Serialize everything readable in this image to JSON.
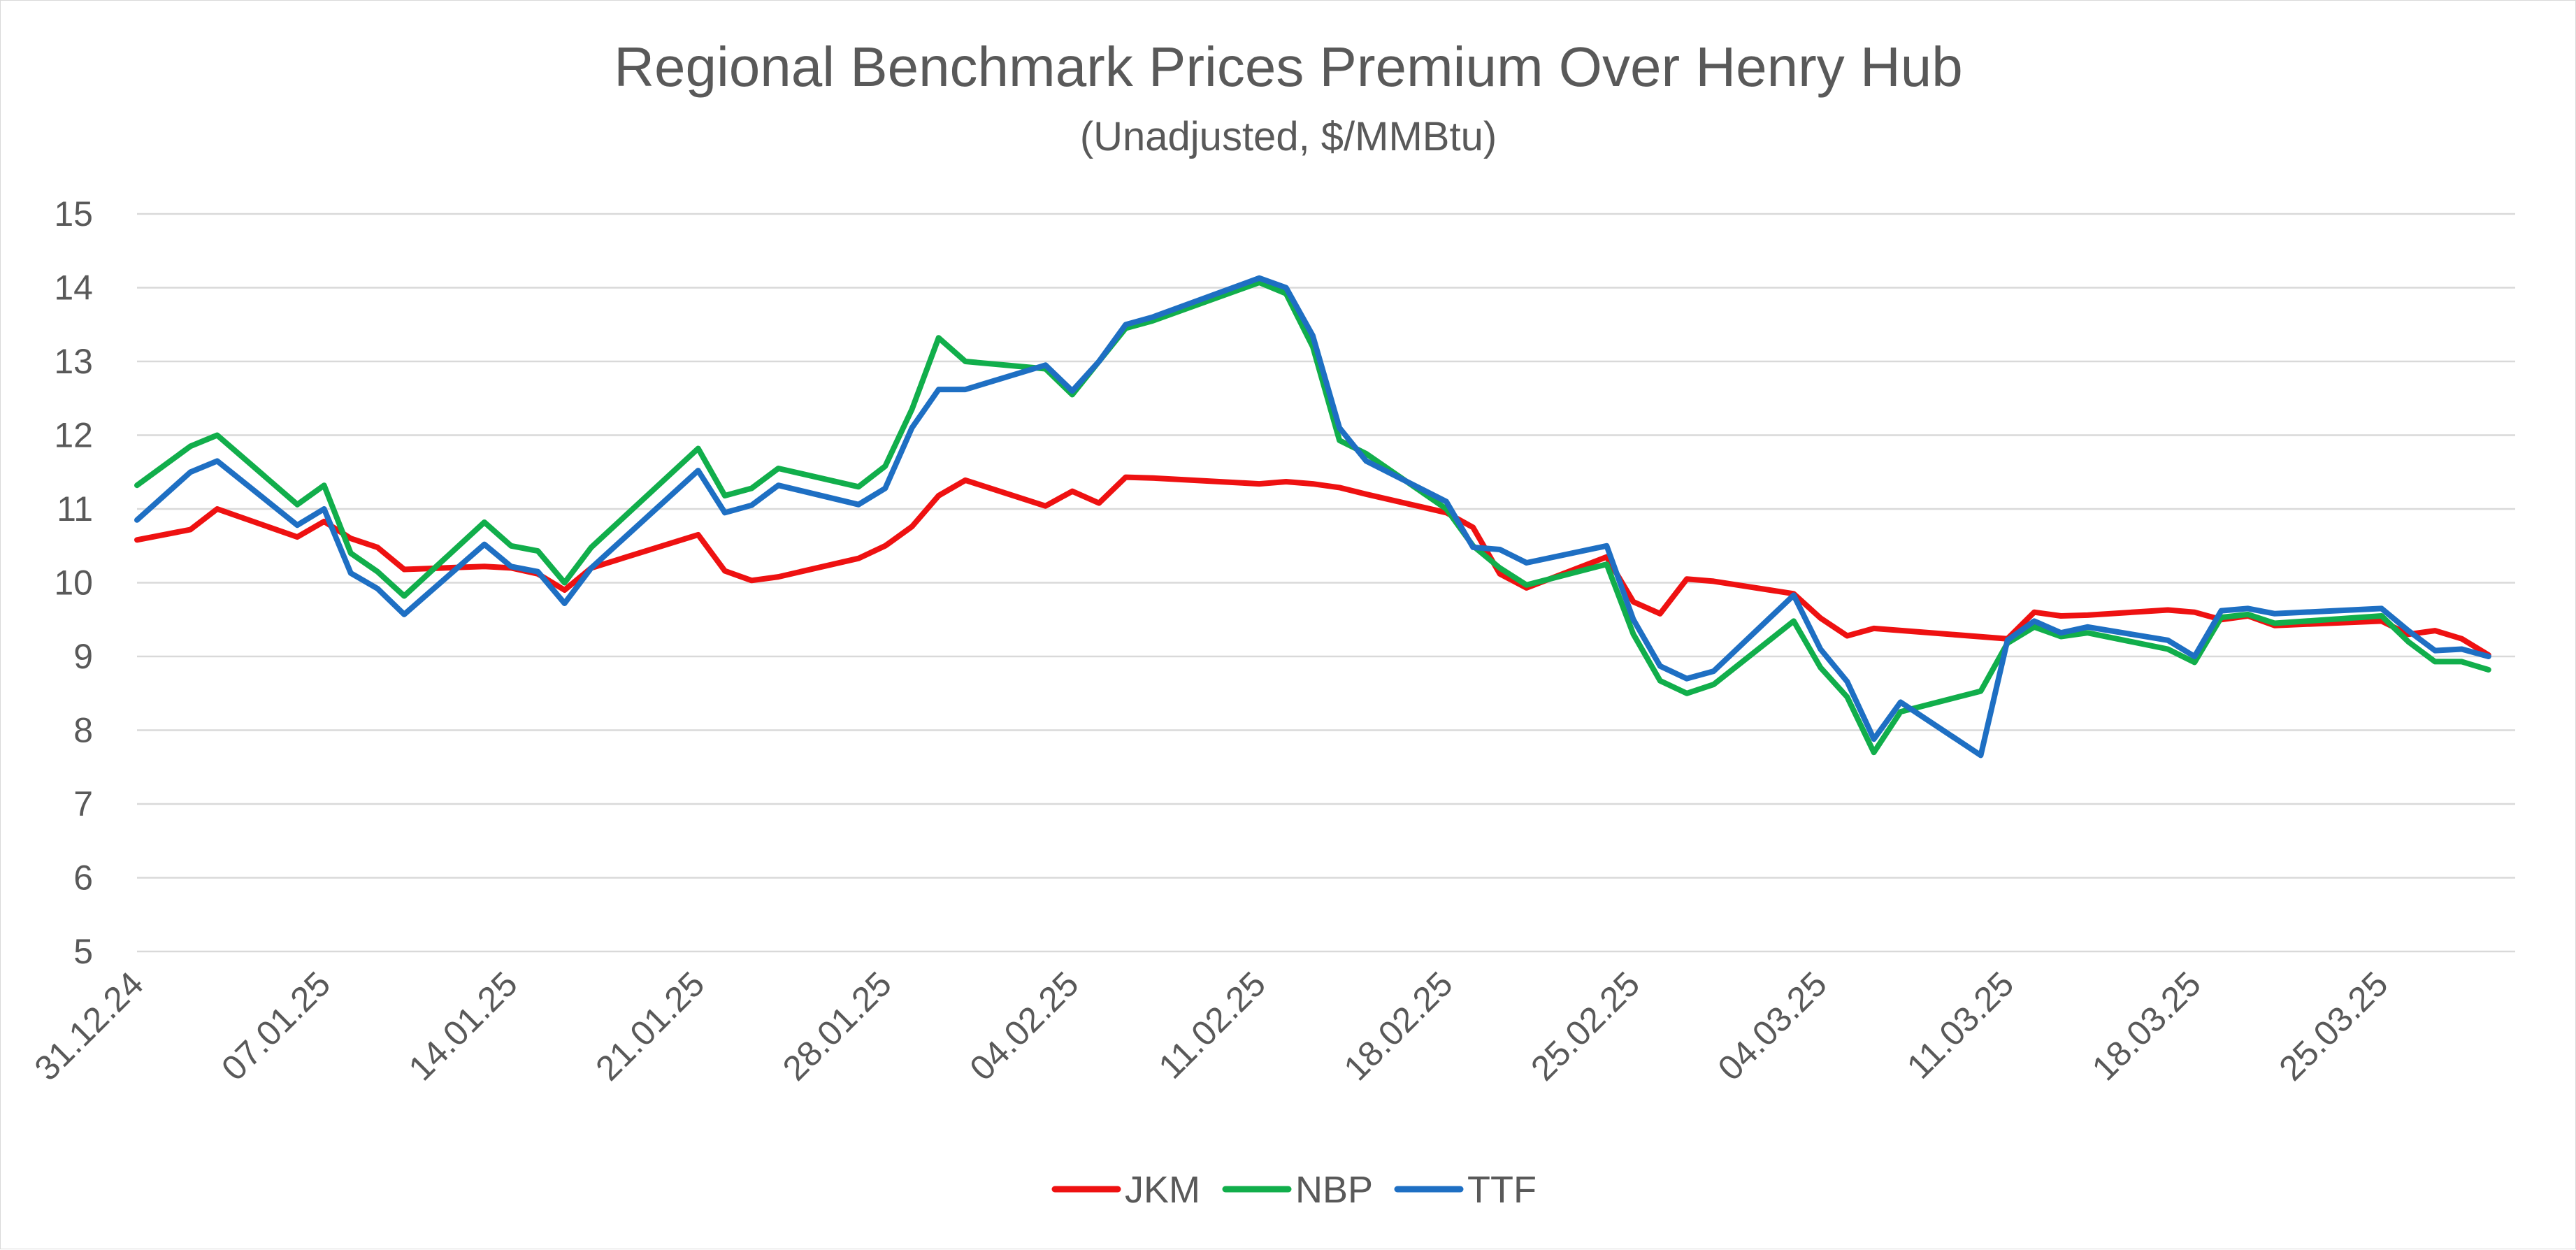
{
  "chart_data": {
    "type": "line",
    "title": "Regional Benchmark Prices Premium Over Henry Hub",
    "subtitle": "(Unadjusted, $/MMBtu)",
    "xlabel": "",
    "ylabel": "",
    "ylim": [
      5,
      15
    ],
    "yticks": [
      "5",
      "6",
      "7",
      "8",
      "9",
      "10",
      "11",
      "12",
      "13",
      "14",
      "15"
    ],
    "xlim": [
      0,
      89
    ],
    "xtick_labels": [
      {
        "day": 0,
        "label": "31.12.24"
      },
      {
        "day": 7,
        "label": "07.01.25"
      },
      {
        "day": 14,
        "label": "14.01.25"
      },
      {
        "day": 21,
        "label": "21.01.25"
      },
      {
        "day": 28,
        "label": "28.01.25"
      },
      {
        "day": 35,
        "label": "04.02.25"
      },
      {
        "day": 42,
        "label": "11.02.25"
      },
      {
        "day": 49,
        "label": "18.02.25"
      },
      {
        "day": 56,
        "label": "25.02.25"
      },
      {
        "day": 63,
        "label": "04.03.25"
      },
      {
        "day": 70,
        "label": "11.03.25"
      },
      {
        "day": 77,
        "label": "18.03.25"
      },
      {
        "day": 84,
        "label": "25.03.25"
      }
    ],
    "grid": true,
    "legend_position": "bottom",
    "series": [
      {
        "name": "JKM",
        "color": "#ee1111",
        "points": [
          [
            0,
            10.58
          ],
          [
            2,
            10.72
          ],
          [
            3,
            11.0
          ],
          [
            6,
            10.62
          ],
          [
            7,
            10.83
          ],
          [
            8,
            10.6
          ],
          [
            9,
            10.48
          ],
          [
            10,
            10.18
          ],
          [
            13,
            10.22
          ],
          [
            14,
            10.2
          ],
          [
            15,
            10.12
          ],
          [
            16,
            9.9
          ],
          [
            17,
            10.2
          ],
          [
            21,
            10.65
          ],
          [
            22,
            10.16
          ],
          [
            23,
            10.03
          ],
          [
            24,
            10.08
          ],
          [
            27,
            10.33
          ],
          [
            28,
            10.5
          ],
          [
            29,
            10.76
          ],
          [
            30,
            11.18
          ],
          [
            31,
            11.39
          ],
          [
            34,
            11.04
          ],
          [
            35,
            11.24
          ],
          [
            36,
            11.08
          ],
          [
            37,
            11.43
          ],
          [
            38,
            11.42
          ],
          [
            42,
            11.34
          ],
          [
            43,
            11.37
          ],
          [
            44,
            11.34
          ],
          [
            45,
            11.29
          ],
          [
            46,
            11.2
          ],
          [
            49,
            10.95
          ],
          [
            50,
            10.75
          ],
          [
            51,
            10.12
          ],
          [
            52,
            9.93
          ],
          [
            55,
            10.35
          ],
          [
            56,
            9.74
          ],
          [
            57,
            9.58
          ],
          [
            58,
            10.05
          ],
          [
            59,
            10.02
          ],
          [
            62,
            9.85
          ],
          [
            63,
            9.52
          ],
          [
            64,
            9.28
          ],
          [
            65,
            9.38
          ],
          [
            70,
            9.24
          ],
          [
            71,
            9.6
          ],
          [
            72,
            9.55
          ],
          [
            73,
            9.56
          ],
          [
            76,
            9.63
          ],
          [
            77,
            9.6
          ],
          [
            78,
            9.5
          ],
          [
            79,
            9.55
          ],
          [
            80,
            9.42
          ],
          [
            84,
            9.48
          ],
          [
            85,
            9.3
          ],
          [
            86,
            9.35
          ],
          [
            87,
            9.24
          ],
          [
            88,
            9.02
          ]
        ]
      },
      {
        "name": "NBP",
        "color": "#11ae4b",
        "points": [
          [
            0,
            11.32
          ],
          [
            2,
            11.85
          ],
          [
            3,
            12.0
          ],
          [
            6,
            11.06
          ],
          [
            7,
            11.32
          ],
          [
            8,
            10.4
          ],
          [
            9,
            10.15
          ],
          [
            10,
            9.82
          ],
          [
            13,
            10.82
          ],
          [
            14,
            10.5
          ],
          [
            15,
            10.43
          ],
          [
            16,
            10.0
          ],
          [
            17,
            10.48
          ],
          [
            21,
            11.82
          ],
          [
            22,
            11.18
          ],
          [
            23,
            11.28
          ],
          [
            24,
            11.55
          ],
          [
            27,
            11.3
          ],
          [
            28,
            11.58
          ],
          [
            29,
            12.35
          ],
          [
            30,
            13.32
          ],
          [
            31,
            13.0
          ],
          [
            34,
            12.9
          ],
          [
            35,
            12.55
          ],
          [
            36,
            13.0
          ],
          [
            37,
            13.45
          ],
          [
            38,
            13.55
          ],
          [
            42,
            14.07
          ],
          [
            43,
            13.92
          ],
          [
            44,
            13.2
          ],
          [
            45,
            11.93
          ],
          [
            46,
            11.75
          ],
          [
            49,
            11.0
          ],
          [
            50,
            10.5
          ],
          [
            51,
            10.2
          ],
          [
            52,
            9.97
          ],
          [
            55,
            10.25
          ],
          [
            56,
            9.3
          ],
          [
            57,
            8.67
          ],
          [
            58,
            8.5
          ],
          [
            59,
            8.62
          ],
          [
            62,
            9.48
          ],
          [
            63,
            8.85
          ],
          [
            64,
            8.45
          ],
          [
            65,
            7.7
          ],
          [
            66,
            8.25
          ],
          [
            69,
            8.53
          ],
          [
            70,
            9.18
          ],
          [
            71,
            9.4
          ],
          [
            72,
            9.27
          ],
          [
            73,
            9.32
          ],
          [
            76,
            9.1
          ],
          [
            77,
            8.92
          ],
          [
            78,
            9.53
          ],
          [
            79,
            9.57
          ],
          [
            80,
            9.45
          ],
          [
            84,
            9.55
          ],
          [
            85,
            9.2
          ],
          [
            86,
            8.93
          ],
          [
            87,
            8.93
          ],
          [
            88,
            8.82
          ]
        ]
      },
      {
        "name": "TTF",
        "color": "#1e6fc3",
        "points": [
          [
            0,
            10.85
          ],
          [
            2,
            11.5
          ],
          [
            3,
            11.65
          ],
          [
            6,
            10.78
          ],
          [
            7,
            11.0
          ],
          [
            8,
            10.13
          ],
          [
            9,
            9.92
          ],
          [
            10,
            9.57
          ],
          [
            13,
            10.52
          ],
          [
            14,
            10.22
          ],
          [
            15,
            10.15
          ],
          [
            16,
            9.72
          ],
          [
            17,
            10.2
          ],
          [
            21,
            11.52
          ],
          [
            22,
            10.95
          ],
          [
            23,
            11.05
          ],
          [
            24,
            11.32
          ],
          [
            27,
            11.06
          ],
          [
            28,
            11.28
          ],
          [
            29,
            12.1
          ],
          [
            30,
            12.62
          ],
          [
            31,
            12.62
          ],
          [
            34,
            12.95
          ],
          [
            35,
            12.6
          ],
          [
            36,
            13.0
          ],
          [
            37,
            13.5
          ],
          [
            38,
            13.6
          ],
          [
            42,
            14.13
          ],
          [
            43,
            14.0
          ],
          [
            44,
            13.35
          ],
          [
            45,
            12.1
          ],
          [
            46,
            11.65
          ],
          [
            49,
            11.1
          ],
          [
            50,
            10.48
          ],
          [
            51,
            10.45
          ],
          [
            52,
            10.27
          ],
          [
            55,
            10.5
          ],
          [
            56,
            9.5
          ],
          [
            57,
            8.87
          ],
          [
            58,
            8.7
          ],
          [
            59,
            8.8
          ],
          [
            62,
            9.83
          ],
          [
            63,
            9.1
          ],
          [
            64,
            8.66
          ],
          [
            65,
            7.88
          ],
          [
            66,
            8.38
          ],
          [
            69,
            7.66
          ],
          [
            70,
            9.22
          ],
          [
            71,
            9.48
          ],
          [
            72,
            9.32
          ],
          [
            73,
            9.4
          ],
          [
            76,
            9.22
          ],
          [
            77,
            9.0
          ],
          [
            78,
            9.62
          ],
          [
            79,
            9.65
          ],
          [
            80,
            9.58
          ],
          [
            84,
            9.65
          ],
          [
            85,
            9.35
          ],
          [
            86,
            9.08
          ],
          [
            87,
            9.1
          ],
          [
            88,
            9.0
          ]
        ]
      }
    ]
  }
}
